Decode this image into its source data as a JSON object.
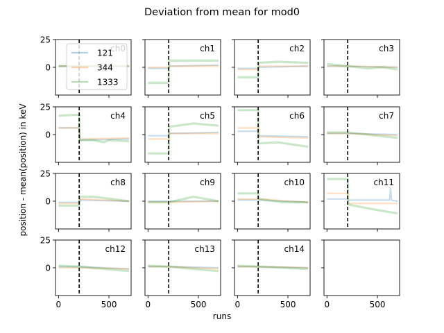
{
  "figure": {
    "title": "Deviation from mean for mod0",
    "xlabel": "runs",
    "ylabel": "position - mean(position) in keV"
  },
  "chart_data": {
    "type": "line",
    "xlim": [
      -30,
      720
    ],
    "ylim": [
      -25,
      25
    ],
    "xticks": [
      0,
      500
    ],
    "yticks": [
      0,
      25
    ],
    "vline_x": 205,
    "grid": false,
    "legend": {
      "placement": "top-left of ch0",
      "entries": [
        "121",
        "344",
        "1333"
      ]
    },
    "series_colors": {
      "121": "#1f77b4",
      "344": "#ff7f0e",
      "1333": "#2ca02c"
    },
    "series_alpha": 0.25,
    "panels": [
      {
        "label": "ch0",
        "s121": [
          [
            0,
            1
          ],
          [
            205,
            1
          ],
          [
            700,
            1
          ]
        ],
        "s344": [
          [
            0,
            1
          ],
          [
            205,
            1
          ],
          [
            700,
            1
          ]
        ],
        "s1333": [
          [
            0,
            1
          ],
          [
            205,
            1
          ],
          [
            700,
            1
          ]
        ]
      },
      {
        "label": "ch1",
        "s121": [
          [
            0,
            -1
          ],
          [
            205,
            -1
          ],
          [
            210,
            1
          ],
          [
            700,
            2
          ]
        ],
        "s344": [
          [
            0,
            0
          ],
          [
            205,
            0
          ],
          [
            210,
            1
          ],
          [
            700,
            1
          ]
        ],
        "s1333": [
          [
            0,
            -14
          ],
          [
            205,
            -14
          ],
          [
            210,
            6
          ],
          [
            450,
            6
          ],
          [
            700,
            6
          ]
        ]
      },
      {
        "label": "ch2",
        "s121": [
          [
            0,
            -1
          ],
          [
            205,
            -1
          ],
          [
            210,
            0
          ],
          [
            700,
            1
          ]
        ],
        "s344": [
          [
            0,
            -2
          ],
          [
            205,
            -2
          ],
          [
            210,
            1
          ],
          [
            700,
            1
          ]
        ],
        "s1333": [
          [
            0,
            -9
          ],
          [
            205,
            -9
          ],
          [
            210,
            4
          ],
          [
            400,
            5
          ],
          [
            700,
            4
          ]
        ]
      },
      {
        "label": "ch3",
        "s121": [
          [
            0,
            1
          ],
          [
            205,
            1
          ],
          [
            700,
            0
          ]
        ],
        "s344": [
          [
            0,
            1
          ],
          [
            205,
            1
          ],
          [
            700,
            0
          ]
        ],
        "s1333": [
          [
            0,
            3
          ],
          [
            205,
            1
          ],
          [
            400,
            -1
          ],
          [
            550,
            0
          ],
          [
            700,
            -2
          ]
        ]
      },
      {
        "label": "ch4",
        "s121": [
          [
            0,
            6
          ],
          [
            205,
            6
          ],
          [
            210,
            -5
          ],
          [
            700,
            -4
          ]
        ],
        "s344": [
          [
            0,
            6
          ],
          [
            205,
            6
          ],
          [
            210,
            -4
          ],
          [
            700,
            -3
          ]
        ],
        "s1333": [
          [
            0,
            17
          ],
          [
            205,
            18
          ],
          [
            210,
            -5
          ],
          [
            350,
            -5
          ],
          [
            450,
            -7
          ],
          [
            500,
            -5
          ],
          [
            700,
            -6
          ]
        ]
      },
      {
        "label": "ch5",
        "s121": [
          [
            0,
            -1
          ],
          [
            205,
            -1
          ],
          [
            210,
            1
          ],
          [
            700,
            2
          ]
        ],
        "s344": [
          [
            0,
            -4
          ],
          [
            205,
            -4
          ],
          [
            210,
            1
          ],
          [
            700,
            1
          ]
        ],
        "s1333": [
          [
            0,
            -17
          ],
          [
            205,
            -17
          ],
          [
            210,
            7
          ],
          [
            450,
            10
          ],
          [
            700,
            8
          ]
        ]
      },
      {
        "label": "ch6",
        "s121": [
          [
            0,
            3
          ],
          [
            205,
            3
          ],
          [
            210,
            -1
          ],
          [
            700,
            -2
          ]
        ],
        "s344": [
          [
            0,
            6
          ],
          [
            205,
            6
          ],
          [
            210,
            -2
          ],
          [
            700,
            -3
          ]
        ],
        "s1333": [
          [
            0,
            22
          ],
          [
            205,
            22
          ],
          [
            210,
            -8
          ],
          [
            400,
            -7
          ],
          [
            700,
            -11
          ]
        ]
      },
      {
        "label": "ch7",
        "s121": [
          [
            0,
            1
          ],
          [
            205,
            1
          ],
          [
            700,
            0
          ]
        ],
        "s344": [
          [
            0,
            1
          ],
          [
            205,
            1
          ],
          [
            700,
            -1
          ]
        ],
        "s1333": [
          [
            0,
            2
          ],
          [
            205,
            2
          ],
          [
            400,
            0
          ],
          [
            700,
            -3
          ]
        ]
      },
      {
        "label": "ch8",
        "s121": [
          [
            0,
            -1
          ],
          [
            205,
            -1
          ],
          [
            210,
            1
          ],
          [
            700,
            0
          ]
        ],
        "s344": [
          [
            0,
            -2
          ],
          [
            205,
            -2
          ],
          [
            210,
            2
          ],
          [
            700,
            0
          ]
        ],
        "s1333": [
          [
            0,
            -4
          ],
          [
            205,
            -4
          ],
          [
            210,
            4
          ],
          [
            350,
            4
          ],
          [
            700,
            0
          ]
        ]
      },
      {
        "label": "ch9",
        "s121": [
          [
            0,
            0
          ],
          [
            205,
            0
          ],
          [
            700,
            0
          ]
        ],
        "s344": [
          [
            0,
            -1
          ],
          [
            205,
            -1
          ],
          [
            700,
            0
          ]
        ],
        "s1333": [
          [
            0,
            -1
          ],
          [
            205,
            -1
          ],
          [
            450,
            4
          ],
          [
            700,
            0
          ]
        ]
      },
      {
        "label": "ch10",
        "s121": [
          [
            0,
            1
          ],
          [
            205,
            1
          ],
          [
            700,
            -1
          ]
        ],
        "s344": [
          [
            0,
            2
          ],
          [
            205,
            2
          ],
          [
            700,
            -1
          ]
        ],
        "s1333": [
          [
            0,
            7
          ],
          [
            205,
            7
          ],
          [
            210,
            2
          ],
          [
            450,
            -1
          ],
          [
            700,
            -1
          ]
        ]
      },
      {
        "label": "ch11",
        "s121": [
          [
            0,
            2
          ],
          [
            205,
            2
          ],
          [
            210,
            1
          ],
          [
            620,
            1
          ],
          [
            630,
            12
          ],
          [
            640,
            1
          ],
          [
            700,
            0
          ]
        ],
        "s344": [
          [
            0,
            7
          ],
          [
            205,
            7
          ],
          [
            210,
            -2
          ],
          [
            700,
            -2
          ]
        ],
        "s1333": [
          [
            0,
            20
          ],
          [
            205,
            20
          ],
          [
            210,
            -3
          ],
          [
            500,
            -8
          ],
          [
            700,
            -11
          ]
        ]
      },
      {
        "label": "ch12",
        "s121": [
          [
            0,
            1
          ],
          [
            205,
            1
          ],
          [
            700,
            -1
          ]
        ],
        "s344": [
          [
            0,
            0
          ],
          [
            205,
            0
          ],
          [
            700,
            -1
          ]
        ],
        "s1333": [
          [
            0,
            2
          ],
          [
            205,
            1
          ],
          [
            450,
            -1
          ],
          [
            700,
            -3
          ]
        ]
      },
      {
        "label": "ch13",
        "s121": [
          [
            0,
            1
          ],
          [
            205,
            1
          ],
          [
            700,
            0
          ]
        ],
        "s344": [
          [
            0,
            1
          ],
          [
            205,
            1
          ],
          [
            700,
            -1
          ]
        ],
        "s1333": [
          [
            0,
            2
          ],
          [
            205,
            1
          ],
          [
            450,
            -1
          ],
          [
            700,
            -3
          ]
        ]
      },
      {
        "label": "ch14",
        "s121": [
          [
            0,
            1
          ],
          [
            205,
            1
          ],
          [
            700,
            0
          ]
        ],
        "s344": [
          [
            0,
            1
          ],
          [
            205,
            1
          ],
          [
            700,
            0
          ]
        ],
        "s1333": [
          [
            0,
            2
          ],
          [
            205,
            1
          ],
          [
            450,
            0
          ],
          [
            700,
            -1
          ]
        ]
      },
      {
        "label": "",
        "empty": true
      }
    ]
  }
}
